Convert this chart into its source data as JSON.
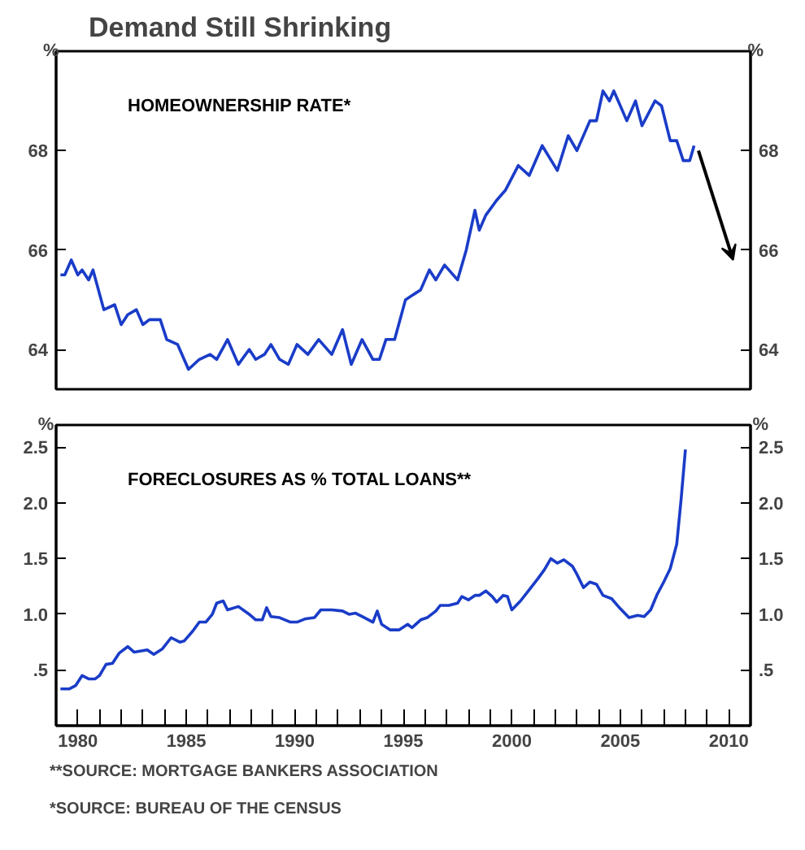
{
  "chart_data": [
    {
      "type": "line",
      "title": "Demand Still Shrinking",
      "ylabel": "%",
      "y2label": "%",
      "xlim": [
        1979,
        2011
      ],
      "ylim": [
        63.2,
        70
      ],
      "yticks": [
        64,
        66,
        68
      ],
      "y2lim": [
        63.2,
        70
      ],
      "y2ticks": [
        64,
        66,
        68
      ],
      "tick_labels": "y",
      "grid": false,
      "series": [
        {
          "name": "HOMEOWNERSHIP RATE*",
          "color": "#1a3cc8",
          "x": [
            1979.2,
            1979.4,
            1979.7,
            1980.0,
            1980.2,
            1980.5,
            1980.7,
            1981.2,
            1981.7,
            1982.0,
            1982.3,
            1982.7,
            1983.0,
            1983.3,
            1983.8,
            1984.1,
            1984.6,
            1985.1,
            1985.6,
            1986.1,
            1986.4,
            1986.9,
            1987.4,
            1987.9,
            1988.2,
            1988.6,
            1988.9,
            1989.3,
            1989.7,
            1990.1,
            1990.6,
            1991.1,
            1991.7,
            1992.2,
            1992.6,
            1993.1,
            1993.6,
            1993.9,
            1994.2,
            1994.6,
            1995.1,
            1995.8,
            1996.2,
            1996.5,
            1996.9,
            1997.5,
            1997.9,
            1998.3,
            1998.5,
            1998.8,
            1999.3,
            1999.7,
            2000.3,
            2000.8,
            2001.4,
            2002.1,
            2002.6,
            2003.0,
            2003.6,
            2003.9,
            2004.2,
            2004.5,
            2004.7,
            2005.3,
            2005.7,
            2006.0,
            2006.6,
            2006.9,
            2007.3,
            2007.6,
            2007.9,
            2008.2,
            2008.4
          ],
          "values": [
            65.5,
            65.5,
            65.8,
            65.5,
            65.6,
            65.4,
            65.6,
            64.8,
            64.9,
            64.5,
            64.7,
            64.8,
            64.5,
            64.6,
            64.6,
            64.2,
            64.1,
            63.6,
            63.8,
            63.9,
            63.8,
            64.2,
            63.7,
            64.0,
            63.8,
            63.9,
            64.1,
            63.8,
            63.7,
            64.1,
            63.9,
            64.2,
            63.9,
            64.4,
            63.7,
            64.2,
            63.8,
            63.8,
            64.2,
            64.2,
            65.0,
            65.2,
            65.6,
            65.4,
            65.7,
            65.4,
            66.0,
            66.8,
            66.4,
            66.7,
            67.0,
            67.2,
            67.7,
            67.5,
            68.1,
            67.6,
            68.3,
            68.0,
            68.6,
            68.6,
            69.2,
            69.0,
            69.2,
            68.6,
            69.0,
            68.5,
            69.0,
            68.9,
            68.2,
            68.2,
            67.8,
            67.8,
            68.1
          ]
        }
      ]
    },
    {
      "type": "line",
      "ylabel": "%",
      "y2label": "%",
      "xlim": [
        1979,
        2011
      ],
      "ylim": [
        0,
        2.7
      ],
      "xticks": [
        1980,
        {
          "value": 1981,
          "label": null
        },
        {
          "value": 1982,
          "label": null
        },
        {
          "value": 1983,
          "label": null
        },
        {
          "value": 1984,
          "label": null
        },
        1985,
        {
          "value": 1986,
          "label": null
        },
        {
          "value": 1987,
          "label": null
        },
        {
          "value": 1988,
          "label": null
        },
        {
          "value": 1989,
          "label": null
        },
        1990,
        {
          "value": 1991,
          "label": null
        },
        {
          "value": 1992,
          "label": null
        },
        {
          "value": 1993,
          "label": null
        },
        {
          "value": 1994,
          "label": null
        },
        1995,
        {
          "value": 1996,
          "label": null
        },
        {
          "value": 1997,
          "label": null
        },
        {
          "value": 1998,
          "label": null
        },
        {
          "value": 1999,
          "label": null
        },
        2000,
        {
          "value": 2001,
          "label": null
        },
        {
          "value": 2002,
          "label": null
        },
        {
          "value": 2003,
          "label": null
        },
        {
          "value": 2004,
          "label": null
        },
        2005,
        {
          "value": 2006,
          "label": null
        },
        {
          "value": 2007,
          "label": null
        },
        {
          "value": 2008,
          "label": null
        },
        {
          "value": 2009,
          "label": null
        },
        2010
      ],
      "yticks": [
        {
          "value": 0.5,
          "label": ".5"
        },
        {
          "value": 1,
          "label": "1.0"
        },
        {
          "value": 1.5,
          "label": "1.5"
        },
        {
          "value": 2,
          "label": "2.0"
        },
        {
          "value": 2.5,
          "label": "2.5"
        }
      ],
      "y2lim": [
        0,
        2.7
      ],
      "y2ticks": [
        {
          "value": 0.5,
          "label": ".5"
        },
        {
          "value": 1,
          "label": "1.0"
        },
        {
          "value": 1.5,
          "label": "1.5"
        },
        {
          "value": 2,
          "label": "2.0"
        },
        {
          "value": 2.5,
          "label": "2.5"
        }
      ],
      "grid": false,
      "annotations": [
        "*SOURCE: BUREAU OF THE CENSUS",
        "**SOURCE: MORTGAGE BANKERS ASSOCIATION"
      ],
      "series": [
        {
          "name": "FORECLOSURES AS % TOTAL LOANS**",
          "color": "#1a3cc8",
          "x": [
            1979.2,
            1979.6,
            1979.9,
            1980.2,
            1980.5,
            1980.8,
            1981.0,
            1981.3,
            1981.6,
            1981.9,
            1982.3,
            1982.6,
            1983.2,
            1983.5,
            1983.9,
            1984.3,
            1984.7,
            1984.9,
            1985.3,
            1985.6,
            1985.9,
            1986.2,
            1986.4,
            1986.7,
            1986.9,
            1987.4,
            1987.9,
            1988.2,
            1988.5,
            1988.7,
            1988.9,
            1989.3,
            1989.8,
            1990.1,
            1990.5,
            1990.9,
            1991.2,
            1991.7,
            1992.2,
            1992.5,
            1992.8,
            1993.1,
            1993.6,
            1993.8,
            1994.0,
            1994.4,
            1994.8,
            1995.2,
            1995.4,
            1995.8,
            1996.1,
            1996.5,
            1996.7,
            1997.1,
            1997.5,
            1997.7,
            1998.0,
            1998.3,
            1998.5,
            1998.8,
            1999.1,
            1999.3,
            1999.6,
            1999.8,
            2000.0,
            2000.4,
            2000.8,
            2001.2,
            2001.5,
            2001.8,
            2002.1,
            2002.4,
            2002.8,
            2003.0,
            2003.3,
            2003.6,
            2003.9,
            2004.2,
            2004.6,
            2005.0,
            2005.4,
            2005.8,
            2006.1,
            2006.4,
            2006.7,
            2007.0,
            2007.3,
            2007.6,
            2007.8,
            2008.0
          ],
          "values": [
            0.33,
            0.33,
            0.36,
            0.45,
            0.42,
            0.42,
            0.45,
            0.55,
            0.56,
            0.65,
            0.71,
            0.66,
            0.68,
            0.64,
            0.69,
            0.79,
            0.75,
            0.76,
            0.85,
            0.93,
            0.93,
            1.0,
            1.1,
            1.12,
            1.04,
            1.07,
            1.0,
            0.95,
            0.95,
            1.06,
            0.98,
            0.97,
            0.93,
            0.93,
            0.96,
            0.97,
            1.04,
            1.04,
            1.03,
            1.0,
            1.01,
            0.98,
            0.93,
            1.03,
            0.91,
            0.86,
            0.86,
            0.91,
            0.88,
            0.95,
            0.97,
            1.03,
            1.08,
            1.08,
            1.1,
            1.16,
            1.13,
            1.17,
            1.17,
            1.21,
            1.16,
            1.11,
            1.17,
            1.16,
            1.04,
            1.12,
            1.22,
            1.32,
            1.4,
            1.5,
            1.46,
            1.49,
            1.43,
            1.36,
            1.24,
            1.29,
            1.27,
            1.17,
            1.14,
            1.05,
            0.97,
            0.99,
            0.98,
            1.04,
            1.18,
            1.29,
            1.41,
            1.63,
            2.03,
            2.48
          ]
        }
      ]
    }
  ]
}
